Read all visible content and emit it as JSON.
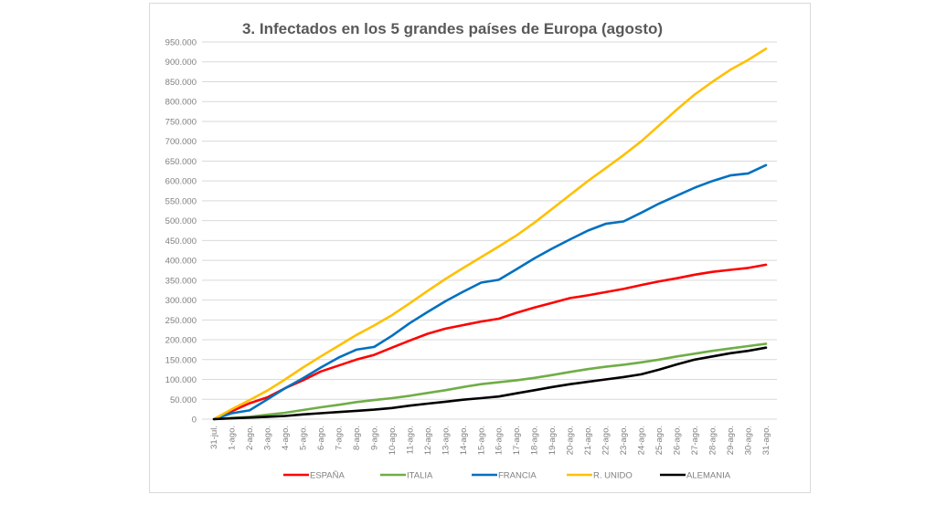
{
  "chart_data": {
    "type": "line",
    "title": "3. Infectados  en los 5 grandes países de Europa (agosto)",
    "xlabel": "",
    "ylabel": "",
    "ylim": [
      0,
      950000
    ],
    "ytick_step": 50000,
    "ytick_labels": [
      "0",
      "50.000",
      "100.000",
      "150.000",
      "200.000",
      "250.000",
      "300.000",
      "350.000",
      "400.000",
      "450.000",
      "500.000",
      "550.000",
      "600.000",
      "650.000",
      "700.000",
      "750.000",
      "800.000",
      "850.000",
      "900.000",
      "950.000"
    ],
    "grid": true,
    "legend_position": "bottom",
    "categories": [
      "31-jul.",
      "1-ago.",
      "2-ago.",
      "3-ago.",
      "4-ago.",
      "5-ago.",
      "6-ago.",
      "7-ago.",
      "8-ago.",
      "9-ago.",
      "10-ago.",
      "11-ago.",
      "12-ago.",
      "13-ago.",
      "14-ago.",
      "15-ago.",
      "16-ago.",
      "17-ago.",
      "18-ago.",
      "19-ago.",
      "20-ago.",
      "21-ago.",
      "22-ago.",
      "23-ago.",
      "24-ago.",
      "25-ago.",
      "26-ago.",
      "27-ago.",
      "28-ago.",
      "29-ago.",
      "30-ago.",
      "31-ago."
    ],
    "series": [
      {
        "name": "ESPAÑA",
        "color": "#ff0000",
        "values": [
          0,
          20000,
          40000,
          55000,
          78000,
          98000,
          120000,
          135000,
          150000,
          162000,
          180000,
          198000,
          215000,
          228000,
          237000,
          246000,
          253000,
          268000,
          281000,
          293000,
          305000,
          312000,
          320000,
          328000,
          338000,
          347000,
          355000,
          364000,
          371000,
          376000,
          381000,
          389000
        ]
      },
      {
        "name": "ITALIA",
        "color": "#70ad47",
        "values": [
          0,
          3000,
          6000,
          11000,
          16000,
          23000,
          30000,
          36000,
          43000,
          48000,
          53000,
          59000,
          66000,
          73000,
          81000,
          88000,
          93000,
          98000,
          104000,
          111000,
          119000,
          126000,
          132000,
          137000,
          143000,
          150000,
          158000,
          165000,
          172000,
          178000,
          184000,
          190000
        ]
      },
      {
        "name": "FRANCIA",
        "color": "#0070c0",
        "values": [
          0,
          15000,
          22000,
          50000,
          78000,
          103000,
          130000,
          155000,
          175000,
          182000,
          210000,
          242000,
          270000,
          297000,
          321000,
          344000,
          351000,
          378000,
          405000,
          430000,
          453000,
          475000,
          492000,
          498000,
          520000,
          543000,
          563000,
          583000,
          600000,
          614000,
          619000,
          640000
        ]
      },
      {
        "name": "R. UNIDO",
        "color": "#ffc000",
        "values": [
          0,
          25000,
          48000,
          72000,
          100000,
          130000,
          158000,
          185000,
          212000,
          236000,
          262000,
          292000,
          323000,
          353000,
          381000,
          408000,
          435000,
          463000,
          495000,
          530000,
          565000,
          600000,
          632000,
          665000,
          700000,
          740000,
          780000,
          818000,
          850000,
          880000,
          905000,
          933000
        ]
      },
      {
        "name": "ALEMANIA",
        "color": "#000000",
        "values": [
          0,
          2000,
          4000,
          6000,
          8000,
          12000,
          15000,
          18000,
          21000,
          24000,
          28000,
          34000,
          39000,
          44000,
          49000,
          53000,
          57000,
          65000,
          73000,
          81000,
          88000,
          94000,
          100000,
          106000,
          113000,
          125000,
          138000,
          150000,
          158000,
          166000,
          172000,
          180000
        ]
      }
    ]
  }
}
